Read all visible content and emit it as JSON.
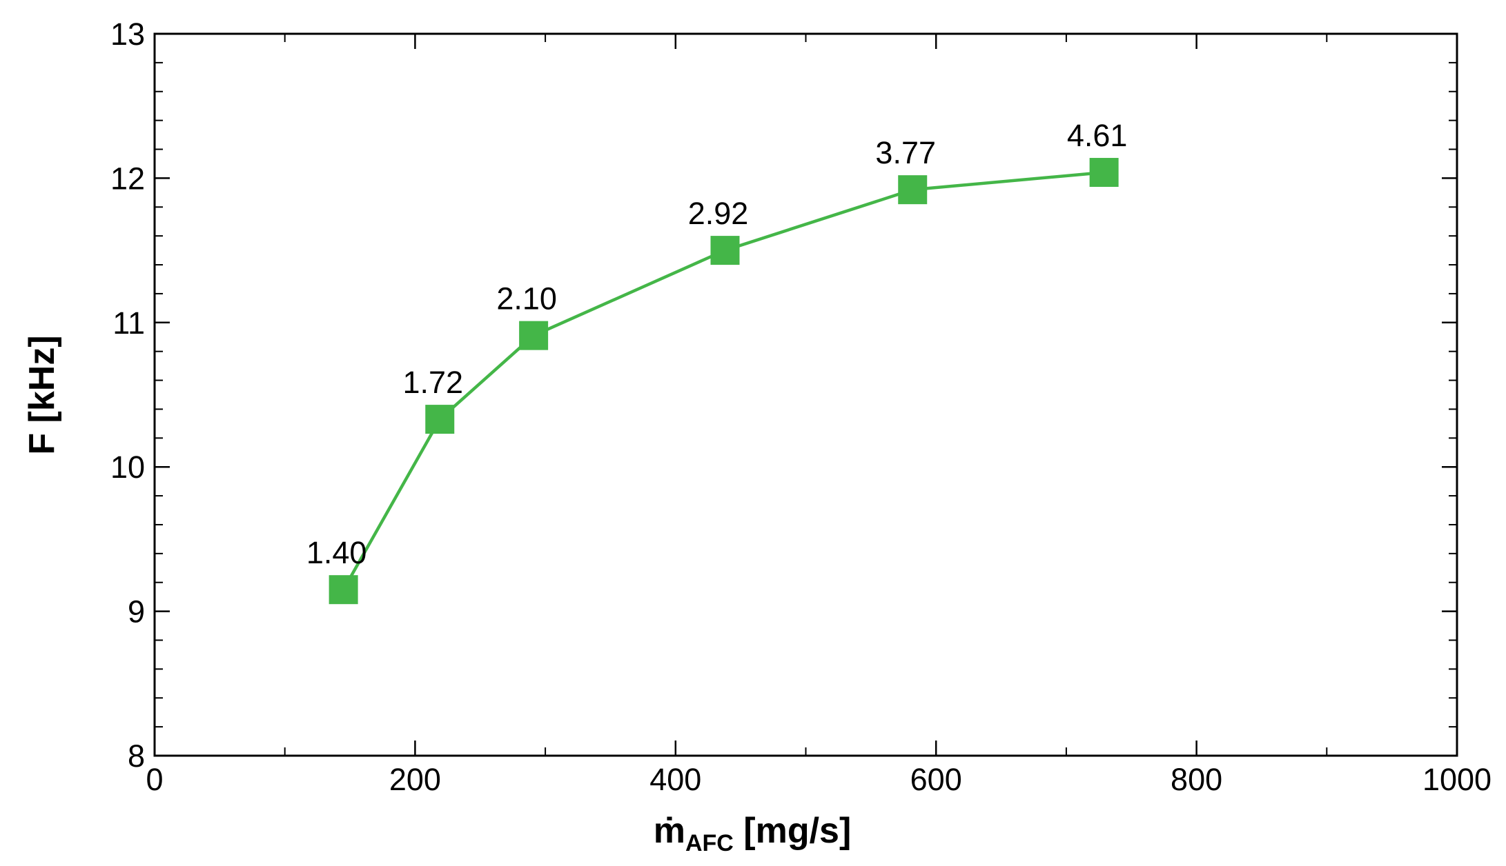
{
  "chart_data": {
    "type": "line",
    "x": [
      145,
      219,
      291,
      438,
      582,
      729
    ],
    "series": [
      {
        "color": "#44b648",
        "values": [
          9.15,
          10.33,
          10.91,
          11.5,
          11.92,
          12.04
        ]
      }
    ],
    "point_labels": [
      "1.40",
      "1.72",
      "2.10",
      "2.92",
      "3.77",
      "4.61"
    ],
    "xlabel": {
      "main": "ṁ",
      "sub": "AFC",
      "unit": " [mg/s]"
    },
    "ylabel": "F [kHz]",
    "xlim": [
      0,
      1000
    ],
    "xticks": [
      0,
      200,
      400,
      600,
      800,
      1000
    ],
    "ylim": [
      8,
      13
    ],
    "yticks": [
      8,
      9,
      10,
      11,
      12,
      13
    ],
    "grid": false
  }
}
